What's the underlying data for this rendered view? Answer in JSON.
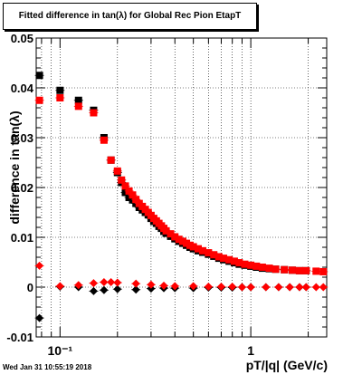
{
  "title": "Fitted difference in tan(λ) for Global Rec Pion EtapT",
  "timestamp": "Wed Jan 31 10:55:19 2018",
  "chart_data": {
    "type": "scatter",
    "title": "Fitted difference in tan(λ) for Global Rec Pion EtapT",
    "xlabel": "pT/|q| (GeV/c)",
    "ylabel": "difference in tan(λ)",
    "x_scale": "log",
    "xlim": [
      0.075,
      2.5
    ],
    "ylim": [
      -0.01,
      0.05
    ],
    "y_ticks": [
      -0.01,
      0,
      0.01,
      0.02,
      0.03,
      0.04,
      0.05
    ],
    "y_tick_labels": [
      "-0.01",
      "0",
      "0.01",
      "0.02",
      "0.03",
      "0.04",
      "0.05"
    ],
    "x_tick_labels": [
      "10⁻¹",
      "1"
    ],
    "x_tick_values": [
      0.1,
      1
    ],
    "grid": true,
    "series": [
      {
        "color": "#000000",
        "marker": "square",
        "x": [
          0.078,
          0.1,
          0.125,
          0.15,
          0.17,
          0.185,
          0.2,
          0.21,
          0.22,
          0.23,
          0.24,
          0.25,
          0.26,
          0.27,
          0.28,
          0.29,
          0.3,
          0.31,
          0.32,
          0.33,
          0.34,
          0.35,
          0.36,
          0.38,
          0.4,
          0.42,
          0.44,
          0.46,
          0.48,
          0.5,
          0.53,
          0.56,
          0.6,
          0.64,
          0.68,
          0.72,
          0.77,
          0.82,
          0.87,
          0.93,
          1.0,
          1.07,
          1.15,
          1.25,
          1.35,
          1.5,
          1.65,
          1.8,
          1.95
        ],
        "y": [
          0.0425,
          0.0395,
          0.0375,
          0.0355,
          0.03,
          0.0255,
          0.023,
          0.021,
          0.019,
          0.018,
          0.0175,
          0.0168,
          0.016,
          0.0155,
          0.015,
          0.0145,
          0.0138,
          0.0132,
          0.0128,
          0.0122,
          0.0118,
          0.0112,
          0.0108,
          0.0102,
          0.0097,
          0.0092,
          0.0088,
          0.0084,
          0.008,
          0.0077,
          0.0073,
          0.007,
          0.0066,
          0.0062,
          0.0058,
          0.0055,
          0.0052,
          0.0049,
          0.0046,
          0.0044,
          0.0042,
          0.004,
          0.0038,
          0.0037,
          0.0036,
          0.0035,
          0.0034,
          0.0033,
          0.0033
        ]
      },
      {
        "color": "#ff0000",
        "marker": "square",
        "x": [
          0.078,
          0.1,
          0.125,
          0.15,
          0.17,
          0.185,
          0.2,
          0.21,
          0.22,
          0.23,
          0.24,
          0.25,
          0.26,
          0.27,
          0.28,
          0.29,
          0.3,
          0.31,
          0.32,
          0.33,
          0.34,
          0.35,
          0.36,
          0.38,
          0.4,
          0.42,
          0.44,
          0.46,
          0.48,
          0.5,
          0.53,
          0.56,
          0.6,
          0.64,
          0.68,
          0.72,
          0.77,
          0.82,
          0.87,
          0.93,
          1.0,
          1.07,
          1.15,
          1.25,
          1.35,
          1.5,
          1.65,
          1.8,
          1.95,
          2.2,
          2.4
        ],
        "y": [
          0.0375,
          0.038,
          0.0363,
          0.035,
          0.0295,
          0.0255,
          0.0233,
          0.0215,
          0.0203,
          0.0193,
          0.0185,
          0.0176,
          0.0168,
          0.0162,
          0.0156,
          0.015,
          0.0144,
          0.0138,
          0.0133,
          0.0128,
          0.0123,
          0.0118,
          0.0113,
          0.0107,
          0.0101,
          0.0096,
          0.0092,
          0.0088,
          0.0084,
          0.0081,
          0.0077,
          0.0073,
          0.0069,
          0.0065,
          0.0061,
          0.0058,
          0.0055,
          0.0052,
          0.0049,
          0.0046,
          0.0044,
          0.0042,
          0.004,
          0.0038,
          0.0036,
          0.0035,
          0.0034,
          0.0033,
          0.0033,
          0.0032,
          0.0031
        ]
      },
      {
        "color": "#000000",
        "marker": "diamond",
        "x": [
          0.078,
          0.1,
          0.125,
          0.15,
          0.17,
          0.2,
          0.25,
          0.3,
          0.35,
          0.4,
          0.5,
          0.6,
          0.7,
          0.8,
          0.9,
          1.0,
          1.2,
          1.4,
          1.6,
          1.8,
          1.95
        ],
        "y": [
          -0.0062,
          0.0001,
          0.0,
          -0.0008,
          -0.0006,
          -0.0004,
          -0.0005,
          -0.0003,
          -0.0002,
          -0.0002,
          -0.0002,
          -0.0001,
          -0.0001,
          -0.0001,
          0.0,
          0.0,
          0.0,
          0.0,
          0.0,
          0.0,
          0.0
        ]
      },
      {
        "color": "#ff0000",
        "marker": "diamond",
        "x": [
          0.078,
          0.1,
          0.125,
          0.15,
          0.17,
          0.185,
          0.2,
          0.25,
          0.3,
          0.35,
          0.4,
          0.5,
          0.6,
          0.7,
          0.8,
          0.9,
          1.0,
          1.2,
          1.4,
          1.6,
          1.8,
          1.95,
          2.2,
          2.4
        ],
        "y": [
          0.0043,
          0.0002,
          0.0004,
          0.0008,
          0.001,
          0.001,
          0.0009,
          0.0007,
          0.0005,
          0.0003,
          0.0002,
          0.0002,
          0.0001,
          0.0001,
          0.0001,
          0.0,
          0.0,
          0.0,
          0.0,
          0.0,
          0.0,
          0.0,
          0.0,
          0.0
        ]
      }
    ]
  }
}
